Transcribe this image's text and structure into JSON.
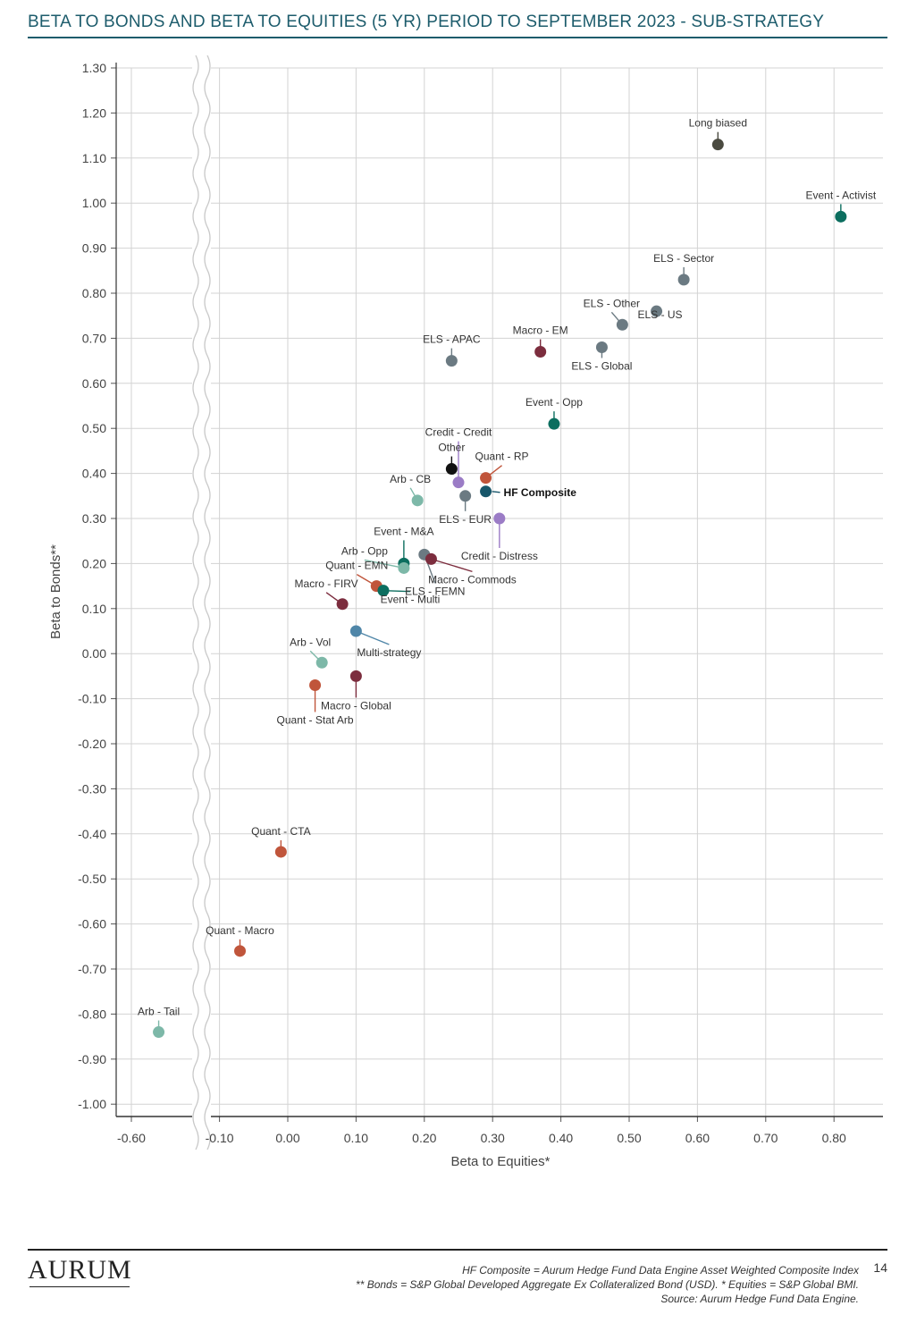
{
  "page": {
    "title": "BETA TO BONDS AND BETA TO EQUITIES (5 YR) PERIOD TO SEPTEMBER 2023 - SUB-STRATEGY",
    "page_number": "14"
  },
  "footer": {
    "logo_text": "AURUM",
    "notes": [
      "HF Composite = Aurum Hedge Fund Data Engine Asset Weighted Composite Index",
      "** Bonds = S&P Global Developed Aggregate Ex Collateralized Bond (USD). * Equities = S&P Global BMI.",
      "Source: Aurum Hedge Fund Data Engine."
    ]
  },
  "chart_data": {
    "type": "scatter",
    "xlabel": "Beta to Equities*",
    "ylabel": "Beta to Bonds**",
    "xlim": [
      -0.6,
      0.8
    ],
    "ylim": [
      -1.0,
      1.3
    ],
    "x_axis_break": [
      -0.55,
      -0.1
    ],
    "grid": true,
    "legend": "none",
    "x_ticks": [
      "-0.60",
      "-0.10",
      "0.00",
      "0.10",
      "0.20",
      "0.30",
      "0.40",
      "0.50",
      "0.60",
      "0.70",
      "0.80"
    ],
    "y_ticks": [
      "1.30",
      "1.20",
      "1.10",
      "1.00",
      "0.90",
      "0.80",
      "0.70",
      "0.60",
      "0.50",
      "0.40",
      "0.30",
      "0.20",
      "0.10",
      "0.00",
      "-0.10",
      "-0.20",
      "-0.30",
      "-0.40",
      "-0.50",
      "-0.60",
      "-0.70",
      "-0.80",
      "-0.90",
      "-1.00"
    ],
    "points": [
      {
        "label": "Long biased",
        "x": 0.63,
        "y": 1.13,
        "color": "#4a4a40"
      },
      {
        "label": "Event - Activist",
        "x": 0.81,
        "y": 0.97,
        "color": "#0c6e5f"
      },
      {
        "label": "ELS - Sector",
        "x": 0.58,
        "y": 0.83,
        "color": "#6b7a82"
      },
      {
        "label": "ELS - Other",
        "x": 0.49,
        "y": 0.73,
        "color": "#6b7a82"
      },
      {
        "label": "ELS - US",
        "x": 0.54,
        "y": 0.76,
        "color": "#6b7a82"
      },
      {
        "label": "ELS - Global",
        "x": 0.46,
        "y": 0.68,
        "color": "#6b7a82"
      },
      {
        "label": "Macro - EM",
        "x": 0.37,
        "y": 0.67,
        "color": "#7c2d3e"
      },
      {
        "label": "ELS - APAC",
        "x": 0.24,
        "y": 0.65,
        "color": "#6b7a82"
      },
      {
        "label": "Event - Opp",
        "x": 0.39,
        "y": 0.51,
        "color": "#0c6e5f"
      },
      {
        "label": "Other",
        "x": 0.24,
        "y": 0.41,
        "color": "#111111"
      },
      {
        "label": "Credit - Credit",
        "x": 0.25,
        "y": 0.38,
        "color": "#9b7cc6"
      },
      {
        "label": "Quant - RP",
        "x": 0.29,
        "y": 0.39,
        "color": "#c0553b"
      },
      {
        "label": "HF Composite",
        "x": 0.29,
        "y": 0.36,
        "color": "#17566a"
      },
      {
        "label": "ELS - EUR",
        "x": 0.26,
        "y": 0.35,
        "color": "#6b7a82"
      },
      {
        "label": "Arb - CB",
        "x": 0.19,
        "y": 0.34,
        "color": "#7db8a8"
      },
      {
        "label": "Credit - Distress",
        "x": 0.31,
        "y": 0.3,
        "color": "#9b7cc6"
      },
      {
        "label": "Event - M&A",
        "x": 0.17,
        "y": 0.2,
        "color": "#0c6e5f"
      },
      {
        "label": "Arb - Opp",
        "x": 0.17,
        "y": 0.19,
        "color": "#7db8a8"
      },
      {
        "label": "ELS - FEMN",
        "x": 0.2,
        "y": 0.22,
        "color": "#6b7a82"
      },
      {
        "label": "Macro - Commods",
        "x": 0.21,
        "y": 0.21,
        "color": "#7c2d3e"
      },
      {
        "label": "Quant - EMN",
        "x": 0.13,
        "y": 0.15,
        "color": "#c0553b"
      },
      {
        "label": "Event - Multi",
        "x": 0.14,
        "y": 0.14,
        "color": "#0c6e5f"
      },
      {
        "label": "Macro - FIRV",
        "x": 0.08,
        "y": 0.11,
        "color": "#7c2d3e"
      },
      {
        "label": "Multi-strategy",
        "x": 0.1,
        "y": 0.05,
        "color": "#4f86a8"
      },
      {
        "label": "Arb - Vol",
        "x": 0.05,
        "y": -0.02,
        "color": "#7db8a8"
      },
      {
        "label": "Macro - Global",
        "x": 0.1,
        "y": -0.05,
        "color": "#7c2d3e"
      },
      {
        "label": "Quant - Stat Arb",
        "x": 0.04,
        "y": -0.07,
        "color": "#c0553b"
      },
      {
        "label": "Quant - CTA",
        "x": -0.01,
        "y": -0.44,
        "color": "#c0553b"
      },
      {
        "label": "Quant - Macro",
        "x": -0.07,
        "y": -0.66,
        "color": "#c0553b"
      },
      {
        "label": "Arb - Tail",
        "x": -0.56,
        "y": -0.84,
        "color": "#7db8a8"
      }
    ]
  }
}
